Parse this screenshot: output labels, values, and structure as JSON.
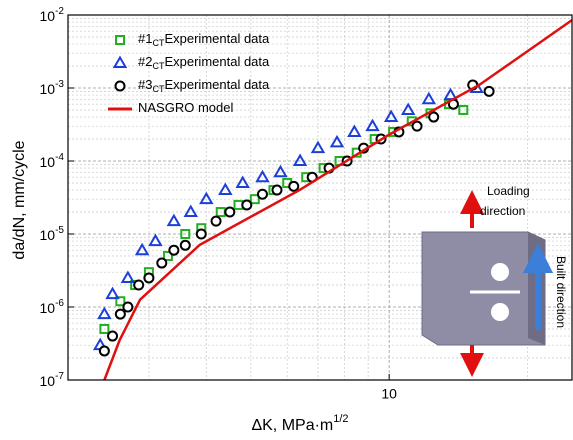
{
  "chart_data": {
    "type": "scatter",
    "x_label": "ΔK, MPa·m",
    "x_label_exponent": "1/2",
    "y_label": "da/dN, mm/cycle",
    "xscale": "log",
    "yscale": "log",
    "xlim": [
      2,
      25
    ],
    "ylim": [
      1e-07,
      0.01
    ],
    "xticks": [
      10
    ],
    "yticks": [
      {
        "value": 1e-07,
        "label": "10",
        "exponent": "-7"
      },
      {
        "value": 1e-06,
        "label": "10",
        "exponent": "-6"
      },
      {
        "value": 1e-05,
        "label": "10",
        "exponent": "-5"
      },
      {
        "value": 0.0001,
        "label": "10",
        "exponent": "-4"
      },
      {
        "value": 0.001,
        "label": "10",
        "exponent": "-3"
      },
      {
        "value": 0.01,
        "label": "10",
        "exponent": "-2"
      }
    ],
    "xminor": [
      2,
      3,
      4,
      5,
      6,
      7,
      8,
      9,
      20
    ],
    "yminor": [
      2e-07,
      3e-07,
      4e-07,
      5e-07,
      6e-07,
      7e-07,
      8e-07,
      9e-07,
      2e-06,
      3e-06,
      4e-06,
      5e-06,
      6e-06,
      7e-06,
      8e-06,
      9e-06,
      2e-05,
      3e-05,
      4e-05,
      5e-05,
      6e-05,
      7e-05,
      8e-05,
      9e-05,
      0.0002,
      0.0003,
      0.0004,
      0.0005,
      0.0006,
      0.0007,
      0.0008,
      0.0009,
      0.002,
      0.003,
      0.004,
      0.005,
      0.006,
      0.007,
      0.008,
      0.009
    ],
    "grid": true,
    "legend": "upper left",
    "series": [
      {
        "name": "#1",
        "subscript": "CT",
        "suffix": "Experimental data",
        "marker": "square",
        "color": "#22b022",
        "x": [
          2.4,
          2.6,
          2.8,
          3.0,
          3.3,
          3.6,
          3.9,
          4.3,
          4.7,
          5.1,
          5.6,
          6.0,
          6.6,
          7.2,
          7.8,
          8.5,
          9.3,
          10.2,
          11.2,
          12.3,
          13.5,
          14.5
        ],
        "values": [
          5e-07,
          1.2e-06,
          2e-06,
          3e-06,
          5e-06,
          1e-05,
          1.2e-05,
          2e-05,
          2.5e-05,
          3e-05,
          4e-05,
          5e-05,
          6e-05,
          8e-05,
          0.0001,
          0.00013,
          0.0002,
          0.00025,
          0.00035,
          0.00045,
          0.0006,
          0.0005
        ]
      },
      {
        "name": "#2",
        "subscript": "CT",
        "suffix": "Experimental data",
        "marker": "triangle",
        "color": "#1c3fd8",
        "x": [
          2.35,
          2.4,
          2.5,
          2.7,
          2.9,
          3.1,
          3.4,
          3.7,
          4.0,
          4.4,
          4.8,
          5.3,
          5.8,
          6.4,
          7.0,
          7.7,
          8.4,
          9.2,
          10.1,
          11.0,
          12.2,
          13.6,
          15.5
        ],
        "values": [
          3e-07,
          8e-07,
          1.5e-06,
          2.5e-06,
          6e-06,
          8e-06,
          1.5e-05,
          2e-05,
          3e-05,
          4e-05,
          5e-05,
          6e-05,
          7e-05,
          0.0001,
          0.00015,
          0.00018,
          0.00025,
          0.0003,
          0.0004,
          0.0005,
          0.0007,
          0.0008,
          0.001
        ]
      },
      {
        "name": "#3",
        "subscript": "CT",
        "suffix": "Experimental data",
        "marker": "circle",
        "color": "#000000",
        "x": [
          2.4,
          2.5,
          2.6,
          2.7,
          2.85,
          3.0,
          3.2,
          3.4,
          3.6,
          3.9,
          4.2,
          4.5,
          4.9,
          5.3,
          5.7,
          6.2,
          6.8,
          7.4,
          8.1,
          8.8,
          9.6,
          10.5,
          11.5,
          12.5,
          13.8,
          15.2,
          16.5
        ],
        "values": [
          2.5e-07,
          4e-07,
          8e-07,
          1e-06,
          2e-06,
          2.5e-06,
          4e-06,
          6e-06,
          7e-06,
          1e-05,
          1.5e-05,
          2e-05,
          2.5e-05,
          3.5e-05,
          4e-05,
          4.5e-05,
          6e-05,
          8e-05,
          0.0001,
          0.00015,
          0.0002,
          0.00025,
          0.0003,
          0.0004,
          0.0006,
          0.0011,
          0.0009
        ]
      },
      {
        "name": "NASGRO  model",
        "marker": "line",
        "color": "#e01010",
        "x": [
          2.4,
          2.59,
          2.87,
          3.87,
          6.38,
          10,
          15.7,
          25
        ],
        "values": [
          1e-07,
          3.5e-07,
          1.26e-06,
          7.1e-06,
          4e-05,
          0.00023,
          0.0011,
          0.0085
        ]
      }
    ],
    "annotations": {
      "loading": [
        "Loading",
        "direction"
      ],
      "built": "Built direction"
    }
  }
}
